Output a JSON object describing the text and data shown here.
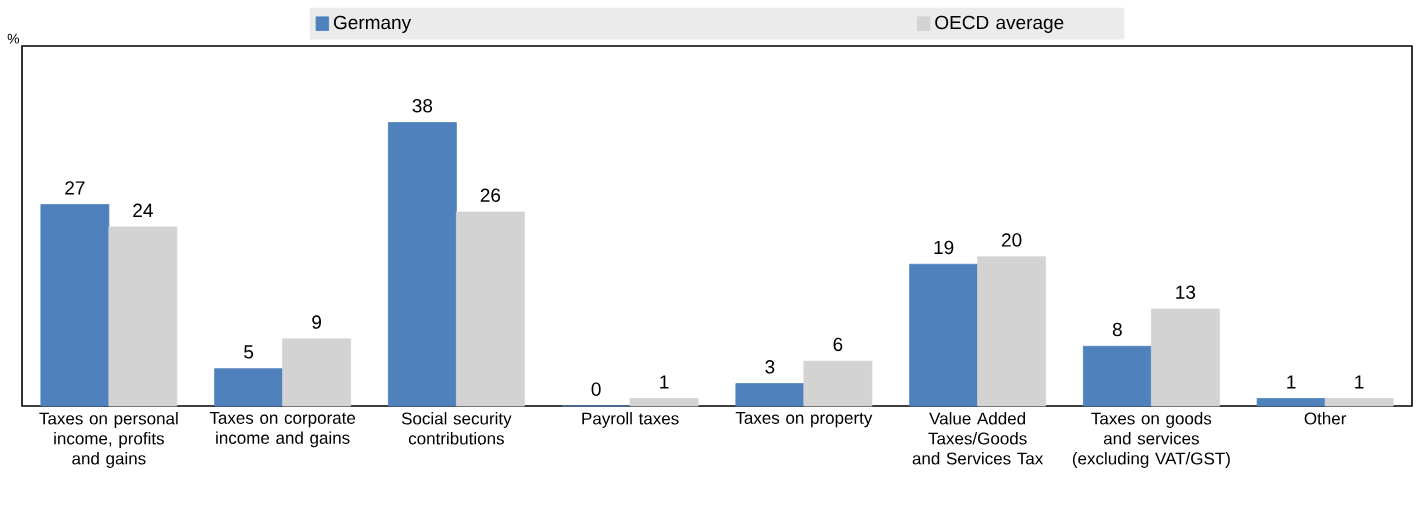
{
  "chart_data": {
    "type": "bar",
    "annotations": [
      "%"
    ],
    "categories": [
      "Taxes on personal income, profits and gains",
      "Taxes on corporate income and gains",
      "Social security contributions",
      "Payroll taxes",
      "Taxes on property",
      "Value Added Taxes/Goods and Services Tax",
      "Taxes on goods and services (excluding VAT/GST)",
      "Other"
    ],
    "series": [
      {
        "name": "Germany",
        "color": "#4f81bd",
        "values": [
          27,
          5,
          38,
          0,
          3,
          19,
          8,
          1
        ]
      },
      {
        "name": "OECD average",
        "color": "#d3d3d3",
        "values": [
          24,
          9,
          26,
          1,
          6,
          20,
          13,
          1
        ]
      }
    ],
    "data_labels": true,
    "legend": "top"
  }
}
